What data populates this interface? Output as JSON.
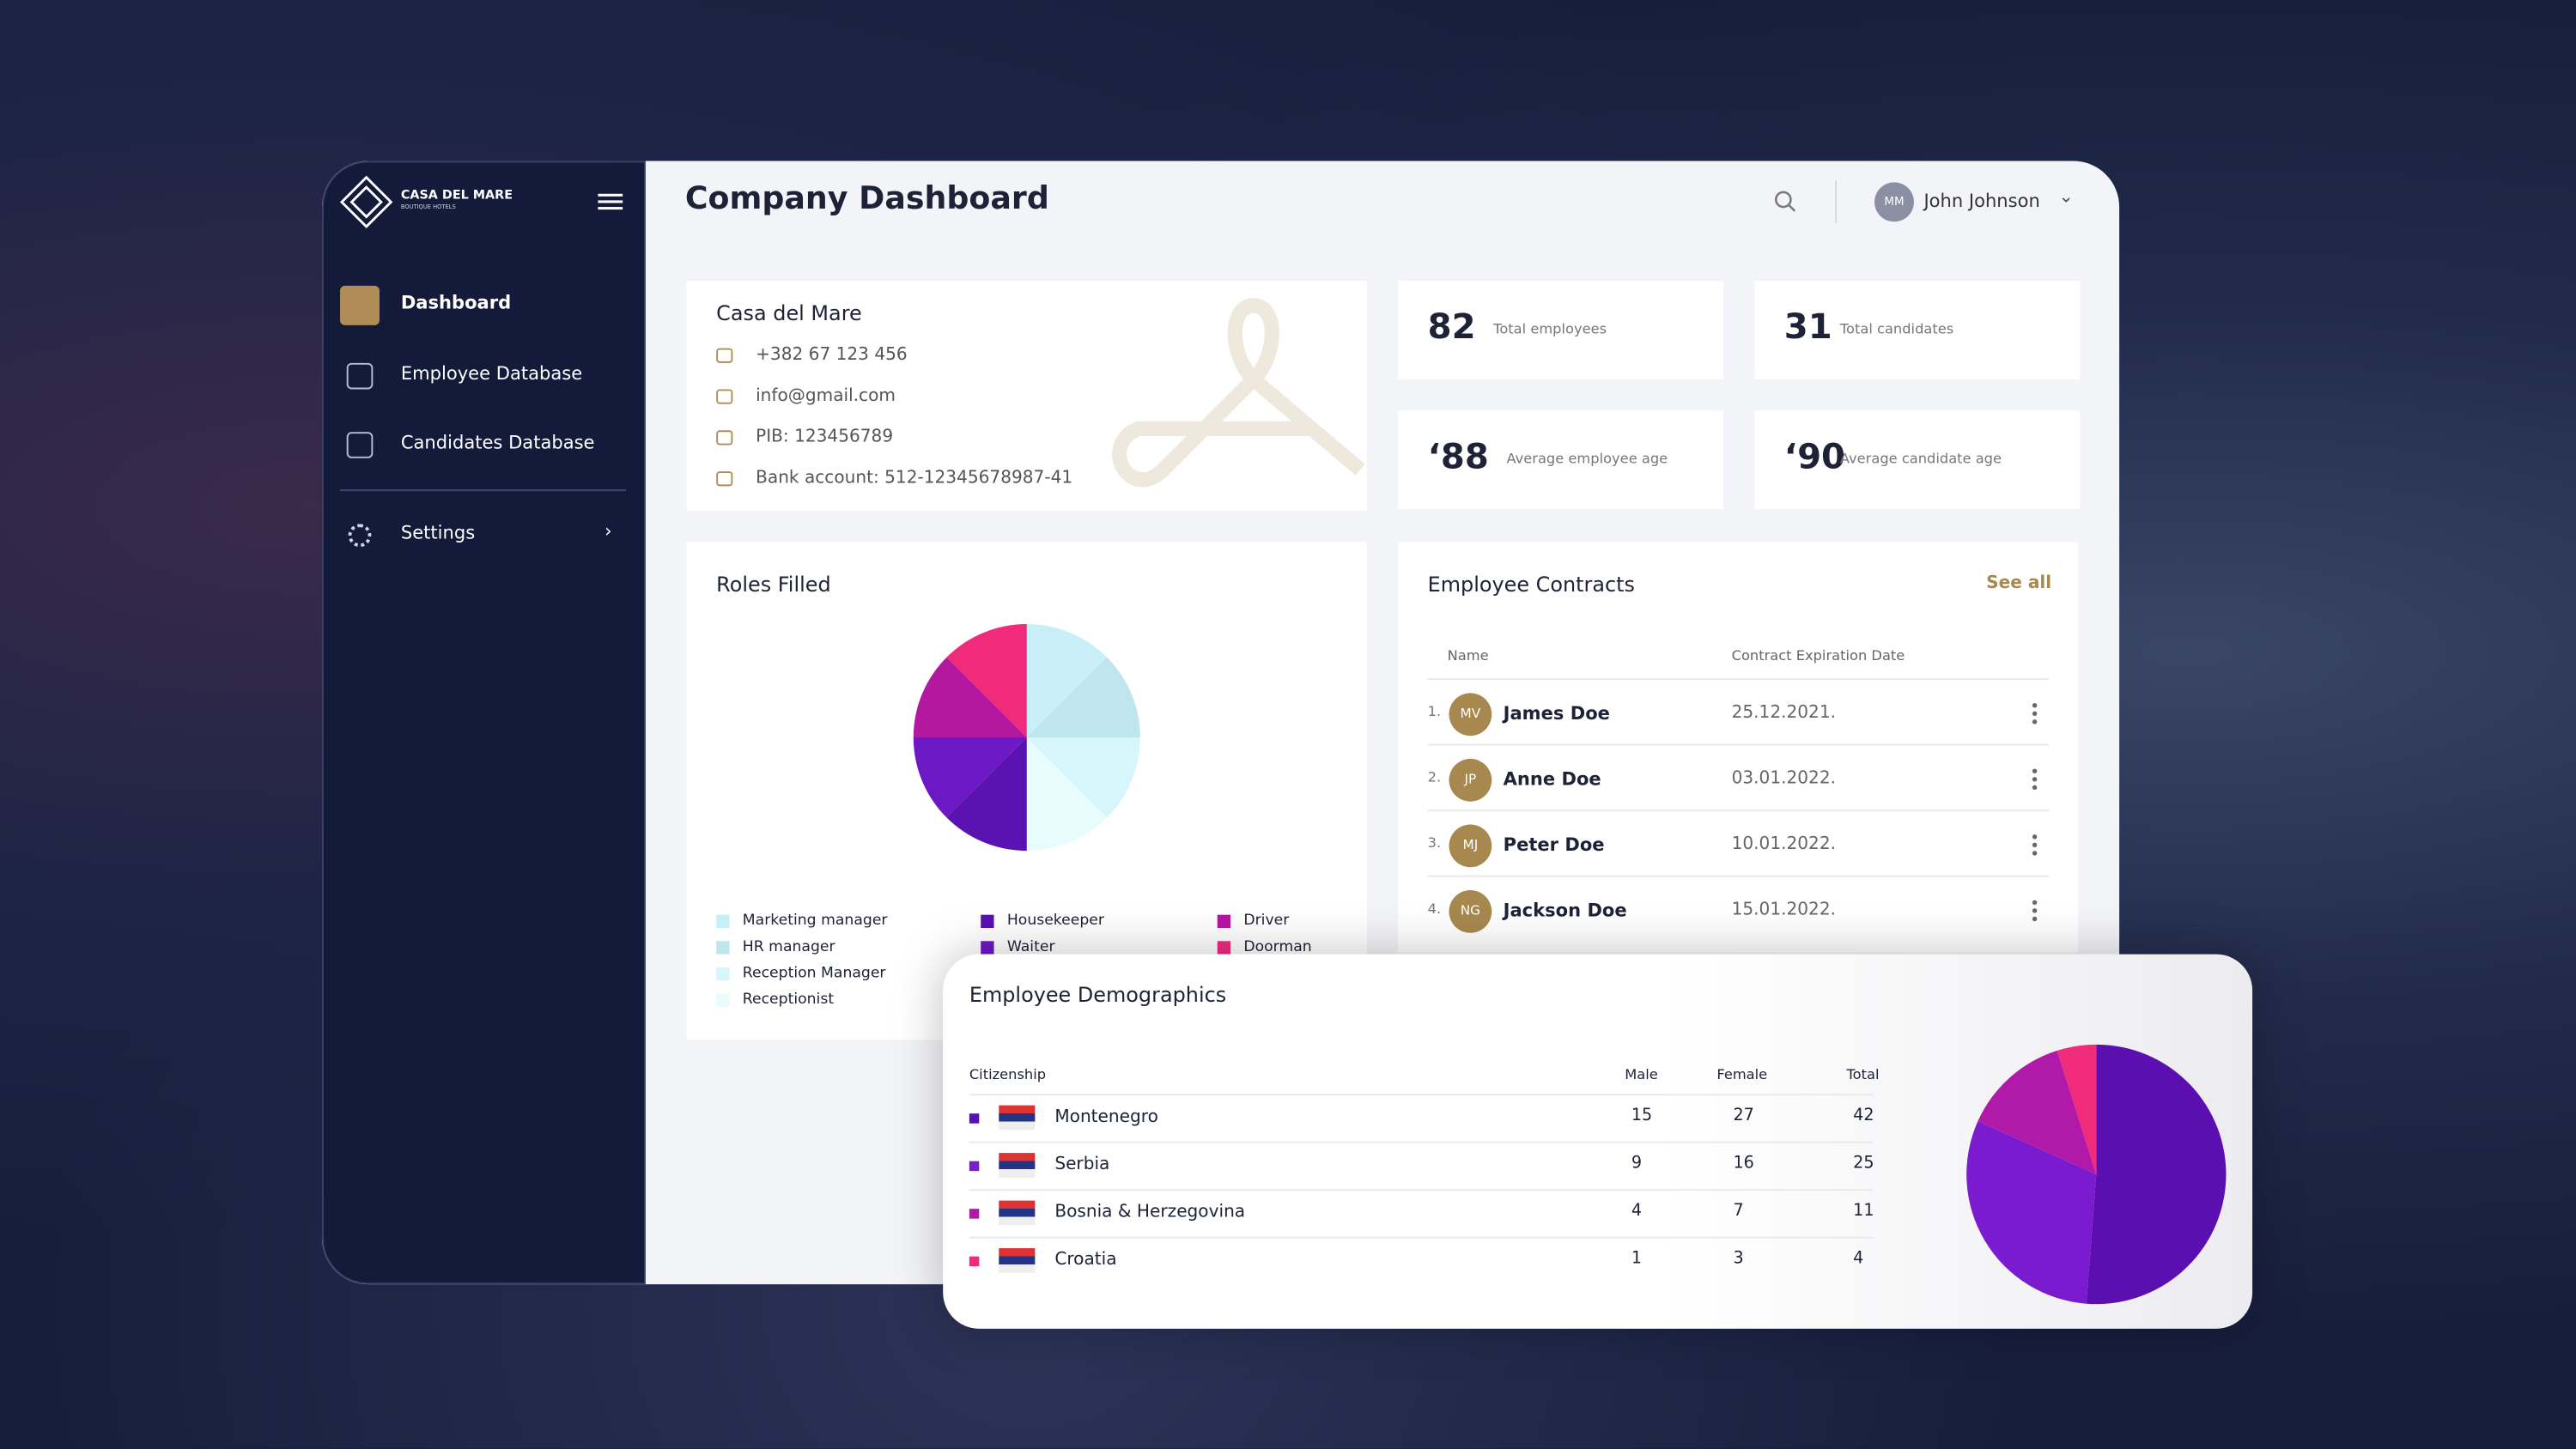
{
  "sidebar": {
    "brand": "CASA DEL MARE",
    "brand_sub": "BOUTIQUE HOTELS",
    "nav": [
      "Dashboard",
      "Employee Database",
      "Candidates Database"
    ],
    "settings": "Settings"
  },
  "header": {
    "title": "Company Dashboard",
    "user_initials": "MM",
    "user_name": "John Johnson"
  },
  "company": {
    "name": "Casa del Mare",
    "phone": "+382 67 123 456",
    "email": "info@gmail.com",
    "pib": "PIB: 123456789",
    "bank": "Bank account: 512-12345678987-41"
  },
  "stats": [
    {
      "value": 82,
      "label": "Total employees"
    },
    {
      "value": 31,
      "label": "Total candidates"
    },
    {
      "value": "‘88",
      "label": "Average employee age"
    },
    {
      "value": "‘90",
      "label": "Average candidate age"
    }
  ],
  "roles_filled": {
    "title": "Roles Filled",
    "chart": {
      "type": "pie",
      "categories": [
        "Marketing manager",
        "HR manager",
        "Reception Manager",
        "Receptionist",
        "Housekeeper",
        "Waiter",
        "Driver",
        "Doorman"
      ],
      "values": [
        12.5,
        12.5,
        12.5,
        12.5,
        12.5,
        12.5,
        12.5,
        12.5
      ],
      "colors": [
        "#c8eff7",
        "#bfe5ee",
        "#d6f6fb",
        "#e8fcfe",
        "#5a12b0",
        "#6c18c4",
        "#b3189e",
        "#f02b7c"
      ],
      "slice_order": [
        0,
        1,
        2,
        3,
        4,
        5,
        6,
        7
      ]
    }
  },
  "contracts": {
    "title": "Employee Contracts",
    "see_all": "See all",
    "columns": [
      "Name",
      "Contract Expiration Date"
    ],
    "rows": [
      {
        "index": "1.",
        "initials": "MV",
        "name": "James Doe",
        "date": "25.12.2021."
      },
      {
        "index": "2.",
        "initials": "JP",
        "name": "Anne Doe",
        "date": "03.01.2022."
      },
      {
        "index": "3.",
        "initials": "MJ",
        "name": "Peter Doe",
        "date": "10.01.2022."
      },
      {
        "index": "4.",
        "initials": "NG",
        "name": "Jackson Doe",
        "date": "15.01.2022."
      }
    ]
  },
  "demographics": {
    "title": "Employee Demographics",
    "columns": [
      "Citizenship",
      "Male",
      "Female",
      "Total"
    ],
    "rows": [
      [
        "Montenegro",
        15,
        27,
        42
      ],
      [
        "Serbia",
        9,
        16,
        25
      ],
      [
        "Bosnia & Herzegovina",
        4,
        7,
        11
      ],
      [
        "Croatia",
        1,
        3,
        4
      ]
    ],
    "colors": [
      "#5b0fb0",
      "#7a1bd0",
      "#b11aa8",
      "#f02b7c"
    ]
  }
}
